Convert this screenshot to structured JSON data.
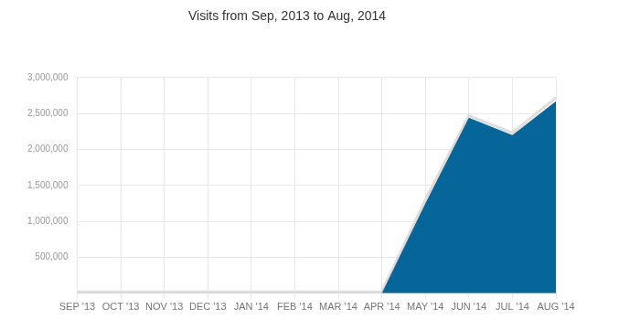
{
  "chart_data": {
    "type": "area",
    "title": "Visits from Sep, 2013 to Aug, 2014",
    "categories": [
      "SEP '13",
      "OCT '13",
      "NOV '13",
      "DEC '13",
      "JAN '14",
      "FEB '14",
      "MAR '14",
      "APR '14",
      "MAY '14",
      "JUN '14",
      "JUL '14",
      "AUG '14"
    ],
    "series": [
      {
        "type": "line",
        "color": "#dddddd",
        "values": [
          20000,
          20000,
          20000,
          20000,
          20000,
          20000,
          20000,
          20000,
          1300000,
          2470000,
          2230000,
          2720000
        ]
      },
      {
        "type": "area",
        "color": "#06669a",
        "values": [
          0,
          0,
          0,
          0,
          0,
          0,
          0,
          0,
          1250000,
          2440000,
          2200000,
          2670000
        ]
      }
    ],
    "ylim": [
      0,
      3000000
    ],
    "yticks": [
      {
        "value": 500000,
        "label": "500,000"
      },
      {
        "value": 1000000,
        "label": "1,000,000"
      },
      {
        "value": 1500000,
        "label": "1,500,000"
      },
      {
        "value": 2000000,
        "label": "2,000,000"
      },
      {
        "value": 2500000,
        "label": "2,500,000"
      },
      {
        "value": 3000000,
        "label": "3,000,000"
      }
    ],
    "grid": true
  }
}
